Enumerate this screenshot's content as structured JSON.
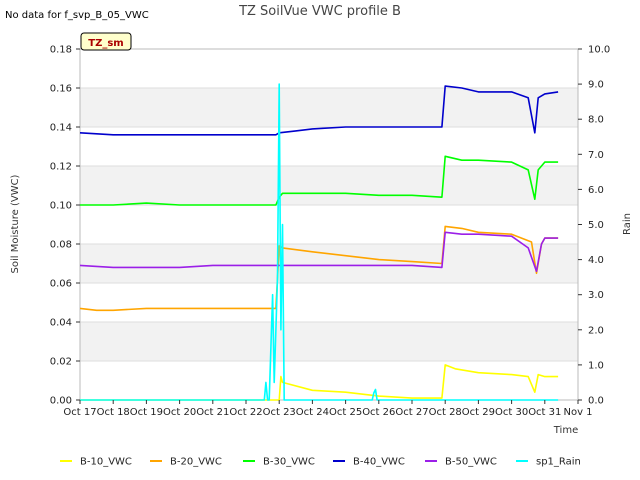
{
  "chart_data": {
    "type": "line",
    "title": "TZ SoilVue VWC profile B",
    "note": "No data for f_svp_B_05_VWC",
    "badge": "TZ_sm",
    "xlabel": "Time",
    "ylabel": "Soil Moisture (VWC)",
    "y2label": "Rain",
    "x_categories": [
      "Oct 17",
      "Oct 18",
      "Oct 19",
      "Oct 20",
      "Oct 21",
      "Oct 22",
      "Oct 23",
      "Oct 24",
      "Oct 25",
      "Oct 26",
      "Oct 27",
      "Oct 28",
      "Oct 29",
      "Oct 30",
      "Oct 31",
      "Nov 1"
    ],
    "xlim": [
      0,
      15
    ],
    "ylim": [
      0,
      0.18
    ],
    "y_ticks": [
      "0.00",
      "0.02",
      "0.04",
      "0.06",
      "0.08",
      "0.10",
      "0.12",
      "0.14",
      "0.16",
      "0.18"
    ],
    "y2lim": [
      0,
      10
    ],
    "y2_ticks": [
      "0.0",
      "1.0",
      "2.0",
      "3.0",
      "4.0",
      "5.0",
      "6.0",
      "7.0",
      "8.0",
      "9.0",
      "10.0"
    ],
    "series": [
      {
        "name": "B-10_VWC",
        "color": "#ffff00",
        "axis": "left",
        "x": [
          0,
          5.9,
          6.0,
          6.05,
          6.1,
          7.0,
          8.0,
          9.0,
          10.0,
          10.9,
          11.0,
          11.3,
          12.0,
          13.0,
          13.5,
          13.7,
          13.8,
          14.0,
          14.4
        ],
        "y": [
          0.0,
          0.0,
          0.0,
          0.012,
          0.009,
          0.005,
          0.004,
          0.002,
          0.001,
          0.001,
          0.018,
          0.016,
          0.014,
          0.013,
          0.012,
          0.004,
          0.013,
          0.012,
          0.012
        ]
      },
      {
        "name": "B-20_VWC",
        "color": "#ffa500",
        "axis": "left",
        "x": [
          0,
          0.5,
          1.0,
          2.0,
          3.0,
          4.0,
          5.0,
          5.9,
          6.0,
          6.1,
          7.0,
          8.0,
          9.0,
          10.0,
          10.9,
          11.0,
          11.5,
          12.0,
          13.0,
          13.6,
          13.75,
          13.9,
          14.0,
          14.4
        ],
        "y": [
          0.047,
          0.046,
          0.046,
          0.047,
          0.047,
          0.047,
          0.047,
          0.047,
          0.079,
          0.078,
          0.076,
          0.074,
          0.072,
          0.071,
          0.07,
          0.089,
          0.088,
          0.086,
          0.085,
          0.081,
          0.065,
          0.08,
          0.083,
          0.083
        ]
      },
      {
        "name": "B-30_VWC",
        "color": "#00ff00",
        "axis": "left",
        "x": [
          0,
          1.0,
          2.0,
          3.0,
          4.0,
          5.0,
          5.9,
          6.0,
          6.1,
          7.0,
          8.0,
          9.0,
          10.0,
          10.9,
          11.0,
          11.5,
          12.0,
          13.0,
          13.5,
          13.7,
          13.8,
          14.0,
          14.4
        ],
        "y": [
          0.1,
          0.1,
          0.101,
          0.1,
          0.1,
          0.1,
          0.1,
          0.104,
          0.106,
          0.106,
          0.106,
          0.105,
          0.105,
          0.104,
          0.125,
          0.123,
          0.123,
          0.122,
          0.118,
          0.103,
          0.118,
          0.122,
          0.122
        ]
      },
      {
        "name": "B-40_VWC",
        "color": "#0000cc",
        "axis": "left",
        "x": [
          0,
          1.0,
          2.0,
          3.0,
          4.0,
          5.0,
          5.9,
          6.0,
          6.5,
          7.0,
          8.0,
          9.0,
          10.0,
          10.9,
          11.0,
          11.5,
          12.0,
          13.0,
          13.5,
          13.7,
          13.8,
          14.0,
          14.4
        ],
        "y": [
          0.137,
          0.136,
          0.136,
          0.136,
          0.136,
          0.136,
          0.136,
          0.137,
          0.138,
          0.139,
          0.14,
          0.14,
          0.14,
          0.14,
          0.161,
          0.16,
          0.158,
          0.158,
          0.155,
          0.137,
          0.155,
          0.157,
          0.158
        ]
      },
      {
        "name": "B-50_VWC",
        "color": "#9b1fe8",
        "axis": "left",
        "x": [
          0,
          1.0,
          2.0,
          3.0,
          4.0,
          5.0,
          6.0,
          7.0,
          8.0,
          9.0,
          10.0,
          10.9,
          11.0,
          11.5,
          12.0,
          13.0,
          13.5,
          13.75,
          13.9,
          14.0,
          14.4
        ],
        "y": [
          0.069,
          0.068,
          0.068,
          0.068,
          0.069,
          0.069,
          0.069,
          0.069,
          0.069,
          0.069,
          0.069,
          0.068,
          0.086,
          0.085,
          0.085,
          0.084,
          0.078,
          0.066,
          0.08,
          0.083,
          0.083
        ]
      },
      {
        "name": "sp1_Rain",
        "color": "#00ffff",
        "axis": "right",
        "x": [
          0,
          5.55,
          5.6,
          5.65,
          5.7,
          5.75,
          5.8,
          5.85,
          5.9,
          5.95,
          6.0,
          6.05,
          6.1,
          6.15,
          6.2,
          8.8,
          8.85,
          8.9,
          8.95,
          9.0,
          14.4
        ],
        "y": [
          0,
          0,
          0.5,
          0,
          0,
          1.5,
          3.0,
          0.5,
          2.0,
          3.5,
          9.0,
          2.0,
          5.0,
          0,
          0,
          0,
          0.2,
          0.3,
          0,
          0,
          0
        ]
      }
    ]
  }
}
